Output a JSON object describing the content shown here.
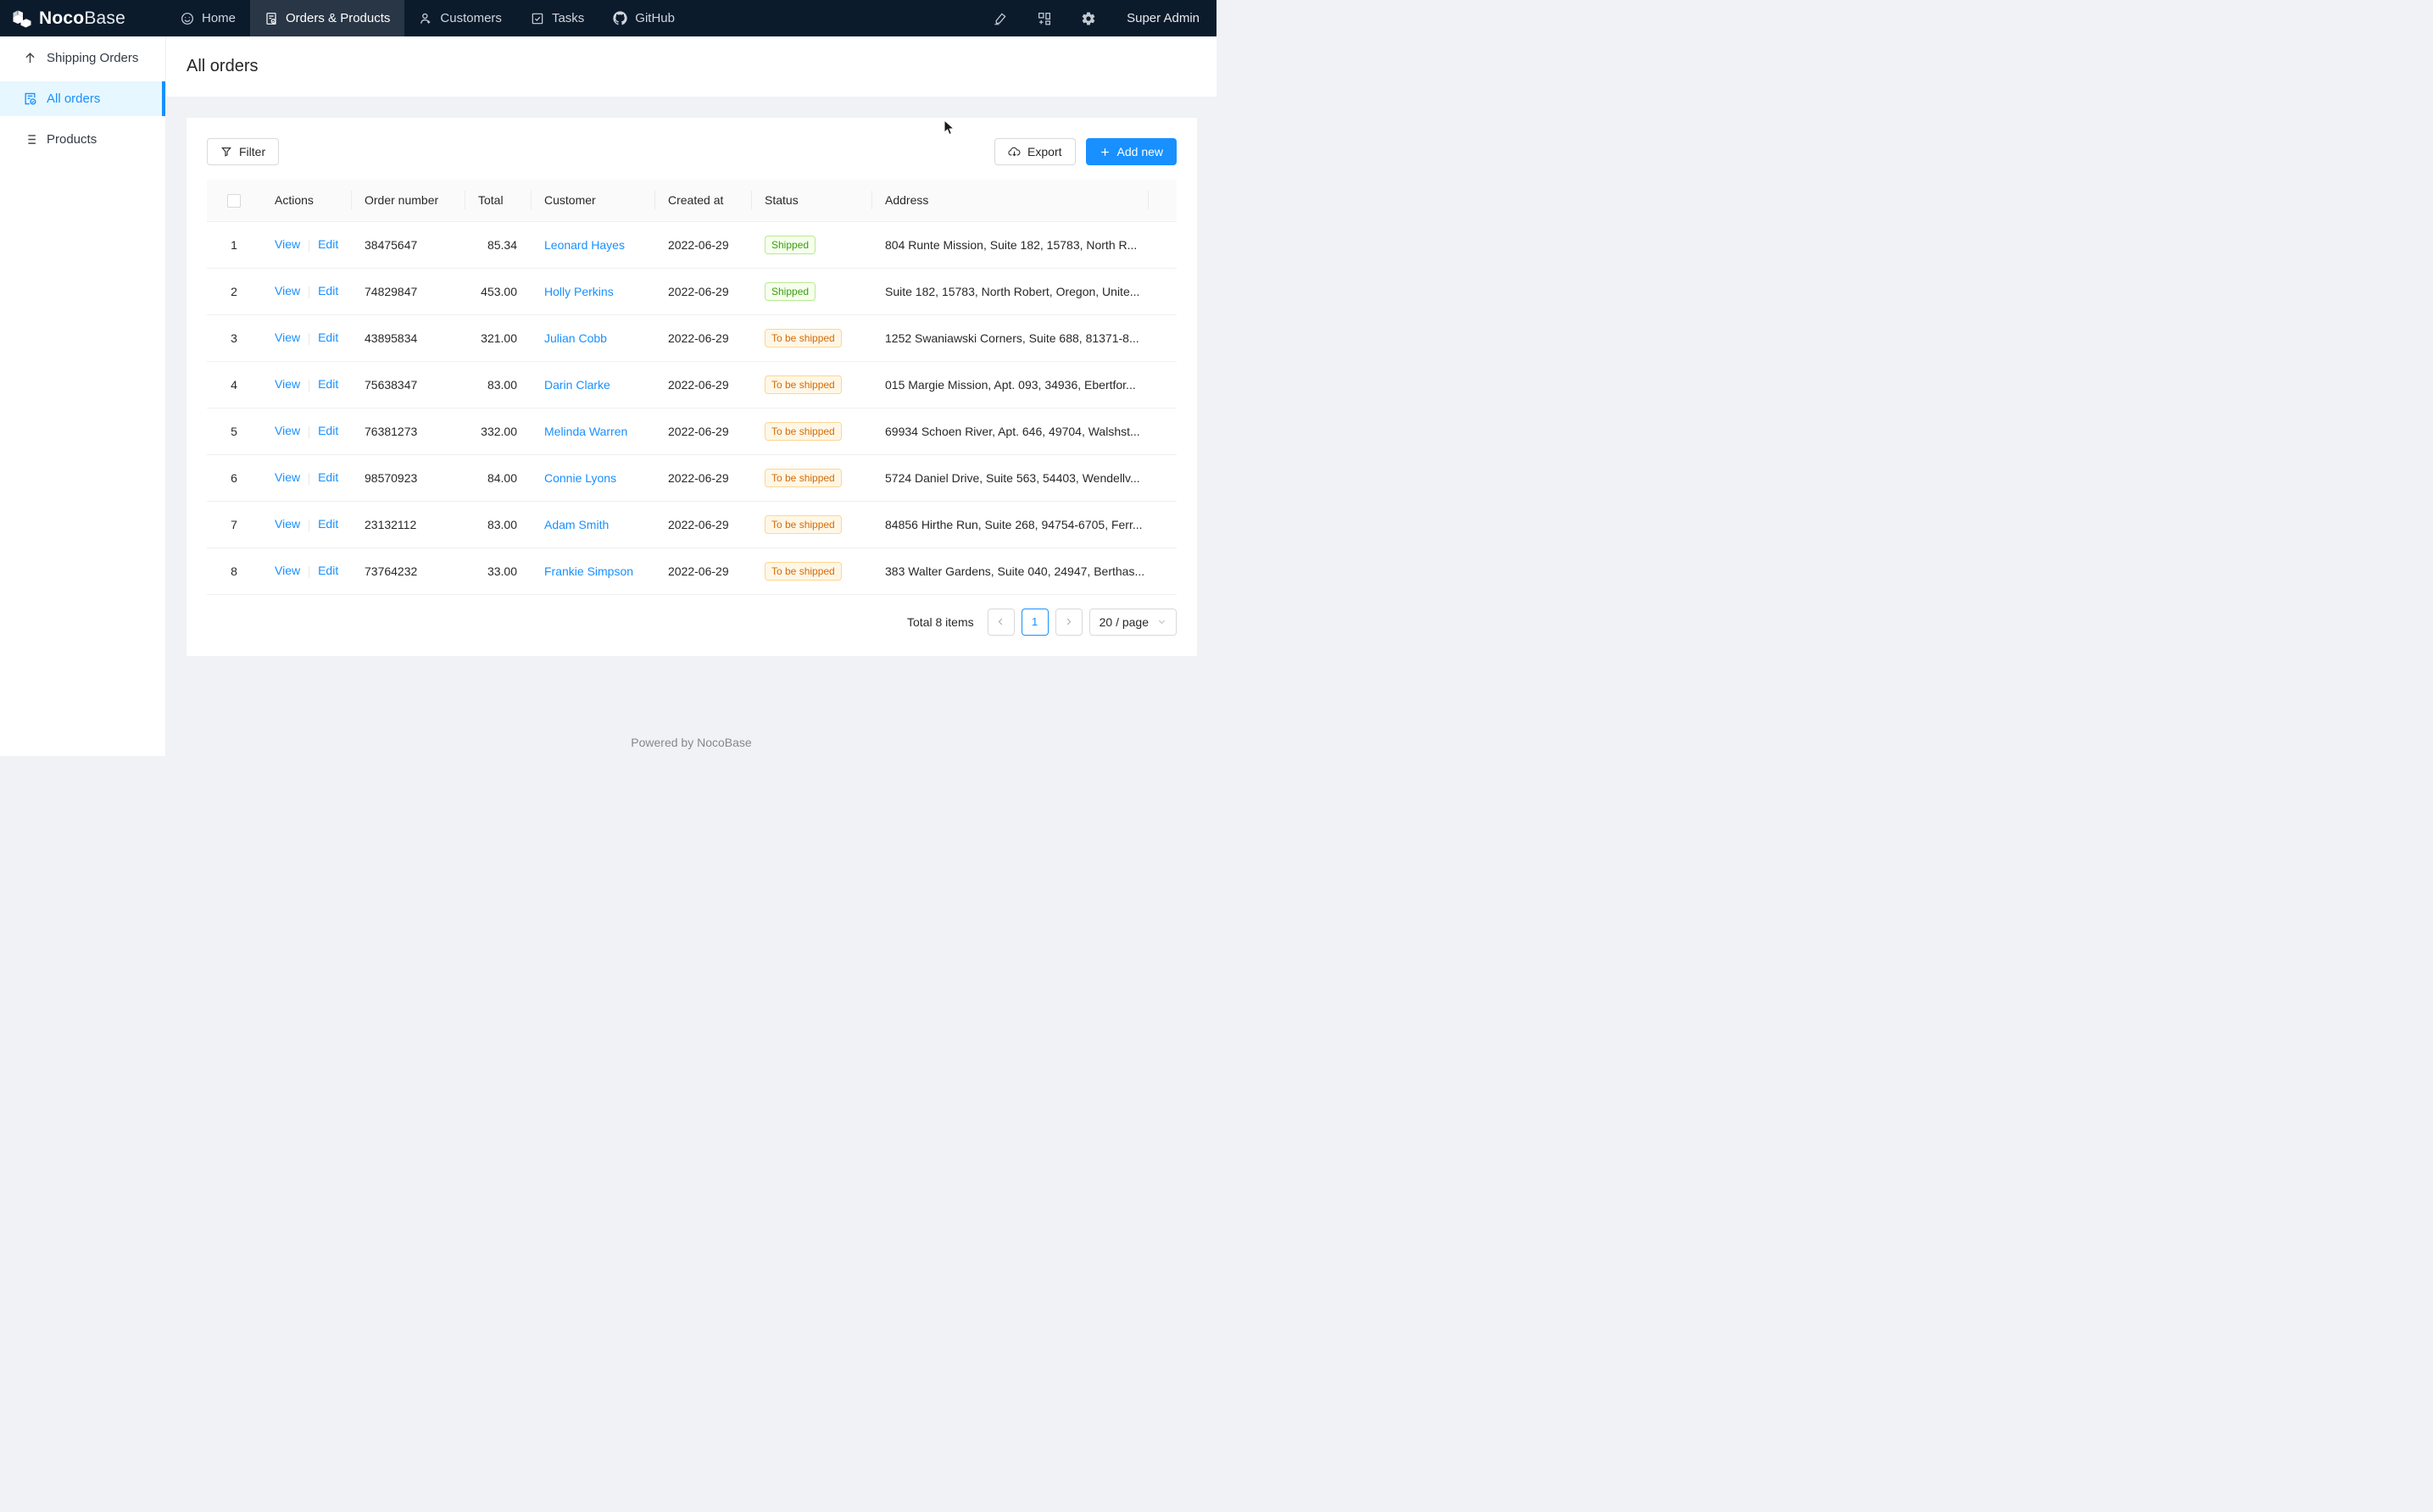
{
  "navbar": {
    "logo": {
      "noco": "Noco",
      "base": "Base"
    },
    "tabs": [
      {
        "label": "Home",
        "icon": "smiley-icon",
        "active": false
      },
      {
        "label": "Orders & Products",
        "icon": "order-document-icon",
        "active": true
      },
      {
        "label": "Customers",
        "icon": "person-icon",
        "active": false
      },
      {
        "label": "Tasks",
        "icon": "check-square-icon",
        "active": false
      },
      {
        "label": "GitHub",
        "icon": "github-icon",
        "active": false
      }
    ],
    "user": "Super Admin"
  },
  "sidebar": {
    "items": [
      {
        "label": "Shipping Orders",
        "icon": "arrow-up-icon",
        "active": false
      },
      {
        "label": "All orders",
        "icon": "order-check-icon",
        "active": true
      },
      {
        "label": "Products",
        "icon": "list-icon",
        "active": false
      }
    ]
  },
  "page": {
    "title": "All orders"
  },
  "toolbar": {
    "filter_label": "Filter",
    "export_label": "Export",
    "add_new_label": "Add new"
  },
  "table": {
    "columns": {
      "actions": "Actions",
      "order_number": "Order number",
      "total": "Total",
      "customer": "Customer",
      "created_at": "Created at",
      "status": "Status",
      "address": "Address"
    },
    "rows": [
      {
        "index": 1,
        "actions": [
          "View",
          "Edit"
        ],
        "order_number": "38475647",
        "total": "85.34",
        "customer": "Leonard Hayes",
        "created_at": "2022-06-29",
        "status": "Shipped",
        "status_type": "success",
        "address": "804 Runte Mission, Suite 182, 15783, North R..."
      },
      {
        "index": 2,
        "actions": [
          "View",
          "Edit"
        ],
        "order_number": "74829847",
        "total": "453.00",
        "customer": "Holly Perkins",
        "created_at": "2022-06-29",
        "status": "Shipped",
        "status_type": "success",
        "address": "Suite 182, 15783, North Robert, Oregon, Unite..."
      },
      {
        "index": 3,
        "actions": [
          "View",
          "Edit"
        ],
        "order_number": "43895834",
        "total": "321.00",
        "customer": "Julian Cobb",
        "created_at": "2022-06-29",
        "status": "To be shipped",
        "status_type": "warning",
        "address": "1252 Swaniawski Corners, Suite 688, 81371-8..."
      },
      {
        "index": 4,
        "actions": [
          "View",
          "Edit"
        ],
        "order_number": "75638347",
        "total": "83.00",
        "customer": "Darin Clarke",
        "created_at": "2022-06-29",
        "status": "To be shipped",
        "status_type": "warning",
        "address": "015 Margie Mission, Apt. 093, 34936, Ebertfor..."
      },
      {
        "index": 5,
        "actions": [
          "View",
          "Edit"
        ],
        "order_number": "76381273",
        "total": "332.00",
        "customer": "Melinda Warren",
        "created_at": "2022-06-29",
        "status": "To be shipped",
        "status_type": "warning",
        "address": "69934 Schoen River, Apt. 646, 49704, Walshst..."
      },
      {
        "index": 6,
        "actions": [
          "View",
          "Edit"
        ],
        "order_number": "98570923",
        "total": "84.00",
        "customer": "Connie Lyons",
        "created_at": "2022-06-29",
        "status": "To be shipped",
        "status_type": "warning",
        "address": "5724 Daniel Drive, Suite 563, 54403, Wendellv..."
      },
      {
        "index": 7,
        "actions": [
          "View",
          "Edit"
        ],
        "order_number": "23132112",
        "total": "83.00",
        "customer": "Adam Smith",
        "created_at": "2022-06-29",
        "status": "To be shipped",
        "status_type": "warning",
        "address": "84856 Hirthe Run, Suite 268, 94754-6705, Ferr..."
      },
      {
        "index": 8,
        "actions": [
          "View",
          "Edit"
        ],
        "order_number": "73764232",
        "total": "33.00",
        "customer": "Frankie Simpson",
        "created_at": "2022-06-29",
        "status": "To be shipped",
        "status_type": "warning",
        "address": "383 Walter Gardens, Suite 040, 24947, Berthas..."
      }
    ]
  },
  "pagination": {
    "total_label": "Total 8 items",
    "current_page": "1",
    "page_size_label": "20 / page"
  },
  "footer": {
    "text": "Powered by NocoBase"
  },
  "icons": {
    "logo": "nocobase-cube",
    "nav_right": [
      "highlighter-icon",
      "blocks-plus-icon",
      "gear-icon"
    ],
    "filter": "funnel-icon",
    "export": "cloud-download-icon",
    "add_new": "plus-icon"
  },
  "colors": {
    "primary": "#1890ff",
    "navbar_bg": "#0c1b2c",
    "navbar_tab_active_bg": "rgba(255,255,255,0.12)",
    "sidebar_active_bg": "#e6f7ff",
    "layout_bg": "#f0f2f5",
    "table_header_bg": "#fafafa",
    "status_shipped": {
      "text": "#389e0d",
      "bg": "#f6ffed",
      "border": "#b7eb8f"
    },
    "status_to_be_shipped": {
      "text": "#d46b08",
      "bg": "#fff7e6",
      "border": "#ffd591"
    }
  }
}
